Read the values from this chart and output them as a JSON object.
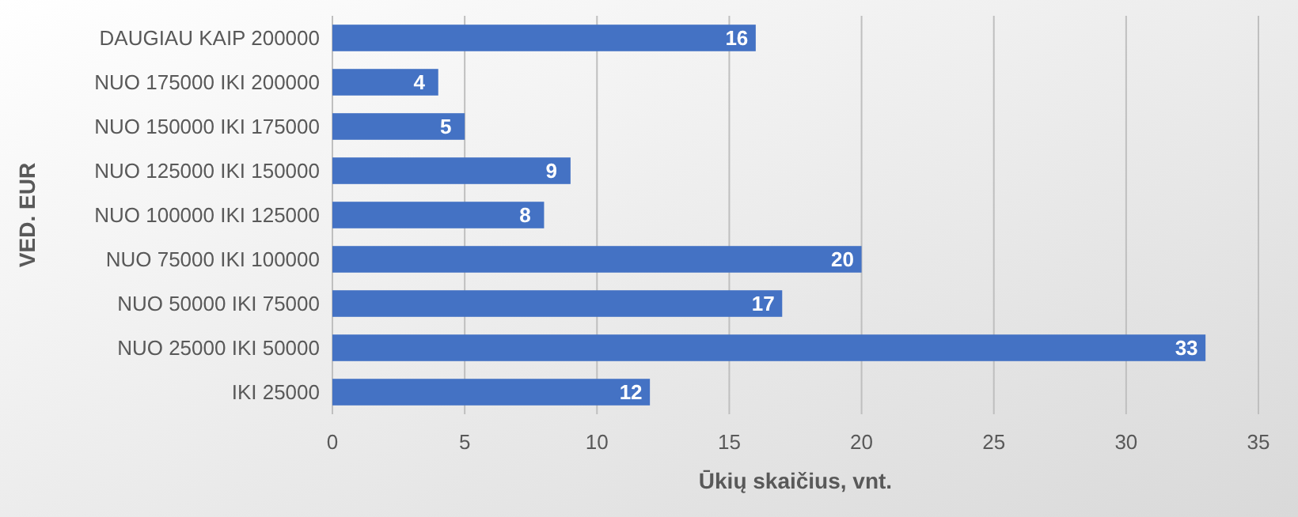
{
  "chart_data": {
    "type": "bar",
    "orientation": "horizontal",
    "xlabel": "Ūkių skaičius, vnt.",
    "ylabel": "VED. EUR",
    "categories": [
      "DAUGIAU KAIP 200000",
      "NUO 175000 IKI 200000",
      "NUO 150000 IKI 175000",
      "NUO 125000 IKI 150000",
      "NUO 100000 IKI 125000",
      "NUO 75000 IKI 100000",
      "NUO 50000 IKI 75000",
      "NUO 25000 IKI 50000",
      "IKI 25000"
    ],
    "values": [
      16,
      4,
      5,
      9,
      8,
      20,
      17,
      33,
      12
    ],
    "color": "#4472c4",
    "xlim": [
      0,
      35
    ],
    "xticks": [
      0,
      5,
      10,
      15,
      20,
      25,
      30,
      35
    ],
    "grid": "x",
    "data_labels": true
  }
}
